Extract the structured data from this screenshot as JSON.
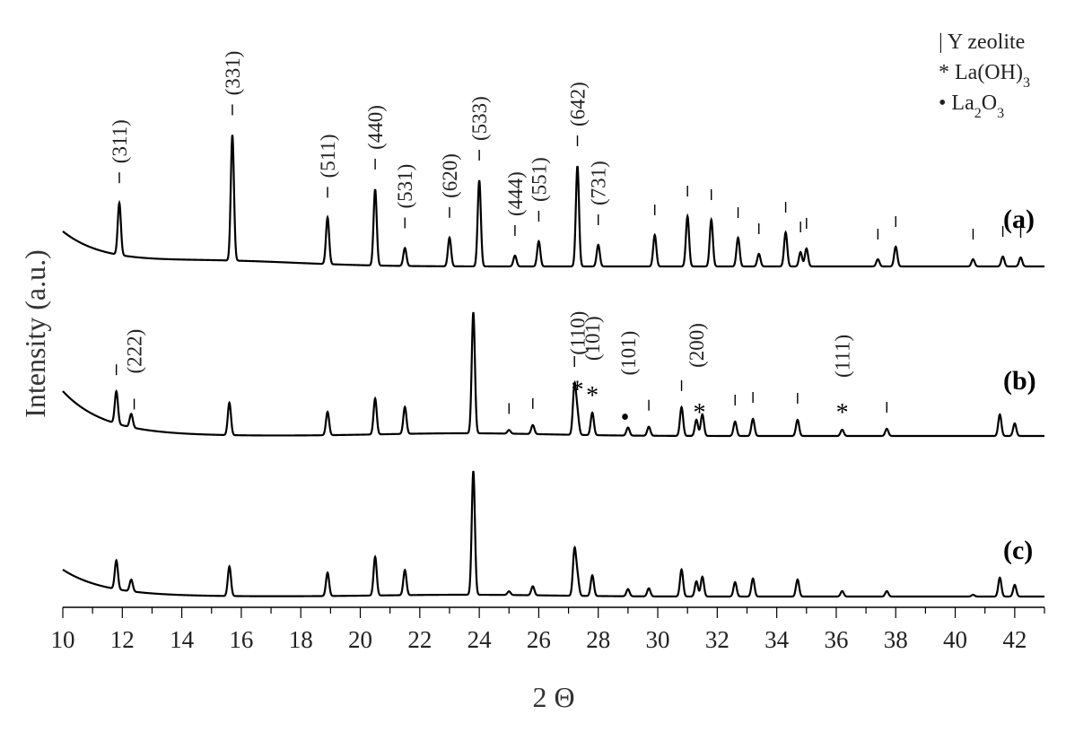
{
  "chart_data": {
    "type": "line",
    "xlabel": "2 Θ",
    "ylabel": "Intensity (a.u.)",
    "xlim": [
      10,
      43
    ],
    "x_ticks": [
      "10",
      "12",
      "14",
      "16",
      "18",
      "20",
      "22",
      "24",
      "26",
      "28",
      "30",
      "32",
      "34",
      "36",
      "38",
      "40",
      "42"
    ],
    "y_axis_values_shown": false,
    "legend": {
      "placement": "top-right",
      "entries": [
        {
          "symbol": "|",
          "text": "Y zeolite"
        },
        {
          "symbol": "*",
          "text": "La(OH)",
          "sub": "3"
        },
        {
          "symbol": "•",
          "text": "La",
          "sub": "2",
          "text2": "O",
          "sub2": "3"
        }
      ]
    },
    "series": [
      {
        "name": "(a)",
        "peaks": [
          {
            "x": 11.9,
            "h": 58
          },
          {
            "x": 15.7,
            "h": 140
          },
          {
            "x": 18.9,
            "h": 52
          },
          {
            "x": 20.5,
            "h": 85
          },
          {
            "x": 21.5,
            "h": 20
          },
          {
            "x": 23.0,
            "h": 32
          },
          {
            "x": 24.0,
            "h": 96
          },
          {
            "x": 25.2,
            "h": 12
          },
          {
            "x": 26.0,
            "h": 28
          },
          {
            "x": 27.3,
            "h": 112
          },
          {
            "x": 28.0,
            "h": 24
          },
          {
            "x": 29.9,
            "h": 35
          },
          {
            "x": 31.0,
            "h": 56
          },
          {
            "x": 31.8,
            "h": 52
          },
          {
            "x": 32.7,
            "h": 32
          },
          {
            "x": 33.4,
            "h": 14
          },
          {
            "x": 34.3,
            "h": 38
          },
          {
            "x": 34.8,
            "h": 16
          },
          {
            "x": 35.0,
            "h": 20
          },
          {
            "x": 37.4,
            "h": 8
          },
          {
            "x": 38.0,
            "h": 22
          },
          {
            "x": 40.6,
            "h": 8
          },
          {
            "x": 41.6,
            "h": 11
          },
          {
            "x": 42.2,
            "h": 10
          }
        ],
        "ticks": [
          11.9,
          15.7,
          18.9,
          20.5,
          21.5,
          23.0,
          24.0,
          25.2,
          26.0,
          27.3,
          28.0,
          29.9,
          31.0,
          31.8,
          32.7,
          33.4,
          34.3,
          34.8,
          35.0,
          37.4,
          38.0,
          40.6,
          41.6,
          42.2
        ],
        "annotations": [
          {
            "x": 11.9,
            "text": "(311)"
          },
          {
            "x": 15.7,
            "text": "(331)"
          },
          {
            "x": 18.9,
            "text": "(511)"
          },
          {
            "x": 20.5,
            "text": "(440)"
          },
          {
            "x": 21.5,
            "text": "(531)"
          },
          {
            "x": 23.0,
            "text": "(620)"
          },
          {
            "x": 24.0,
            "text": "(533)"
          },
          {
            "x": 25.2,
            "text": "(444)"
          },
          {
            "x": 26.0,
            "text": "(551)"
          },
          {
            "x": 27.3,
            "text": "(642)"
          },
          {
            "x": 28.0,
            "text": "(731)"
          }
        ]
      },
      {
        "name": "(b)",
        "peaks": [
          {
            "x": 11.8,
            "h": 36
          },
          {
            "x": 12.3,
            "h": 15
          },
          {
            "x": 15.6,
            "h": 36
          },
          {
            "x": 18.9,
            "h": 26
          },
          {
            "x": 20.5,
            "h": 40
          },
          {
            "x": 21.5,
            "h": 30
          },
          {
            "x": 23.8,
            "h": 135
          },
          {
            "x": 25.0,
            "h": 4
          },
          {
            "x": 25.8,
            "h": 10
          },
          {
            "x": 27.2,
            "h": 54
          },
          {
            "x": 27.3,
            "h": 22
          },
          {
            "x": 27.8,
            "h": 25
          },
          {
            "x": 29.0,
            "h": 9
          },
          {
            "x": 29.7,
            "h": 10
          },
          {
            "x": 30.8,
            "h": 32
          },
          {
            "x": 31.3,
            "h": 18
          },
          {
            "x": 31.5,
            "h": 24
          },
          {
            "x": 32.6,
            "h": 16
          },
          {
            "x": 33.2,
            "h": 19
          },
          {
            "x": 34.7,
            "h": 18
          },
          {
            "x": 36.2,
            "h": 7
          },
          {
            "x": 37.7,
            "h": 8
          },
          {
            "x": 41.5,
            "h": 24
          },
          {
            "x": 42.0,
            "h": 14
          }
        ],
        "ticks": [
          11.8,
          12.4,
          25.0,
          25.8,
          27.2,
          29.7,
          30.8,
          32.6,
          33.2,
          34.7,
          37.7
        ],
        "markers": [
          {
            "x": 27.3,
            "symbol": "*"
          },
          {
            "x": 27.8,
            "symbol": "*"
          },
          {
            "x": 28.9,
            "symbol": "•"
          },
          {
            "x": 31.4,
            "symbol": "*"
          },
          {
            "x": 36.2,
            "symbol": "*"
          }
        ],
        "annotations": [
          {
            "x": 12.4,
            "text": "(222)"
          },
          {
            "x": 27.3,
            "text": "(110)"
          },
          {
            "x": 27.8,
            "text": "(101)"
          },
          {
            "x": 29.0,
            "text": "(101)"
          },
          {
            "x": 31.3,
            "text": "(200)"
          },
          {
            "x": 36.2,
            "text": "(111)"
          }
        ]
      },
      {
        "name": "(c)",
        "peaks": [
          {
            "x": 11.8,
            "h": 32
          },
          {
            "x": 12.3,
            "h": 13
          },
          {
            "x": 15.6,
            "h": 33
          },
          {
            "x": 18.9,
            "h": 26
          },
          {
            "x": 20.5,
            "h": 43
          },
          {
            "x": 21.5,
            "h": 28
          },
          {
            "x": 23.8,
            "h": 138
          },
          {
            "x": 25.0,
            "h": 4
          },
          {
            "x": 25.8,
            "h": 10
          },
          {
            "x": 27.2,
            "h": 50
          },
          {
            "x": 27.3,
            "h": 20
          },
          {
            "x": 27.8,
            "h": 23
          },
          {
            "x": 29.0,
            "h": 8
          },
          {
            "x": 29.7,
            "h": 9
          },
          {
            "x": 30.8,
            "h": 30
          },
          {
            "x": 31.3,
            "h": 17
          },
          {
            "x": 31.5,
            "h": 22
          },
          {
            "x": 32.6,
            "h": 16
          },
          {
            "x": 33.2,
            "h": 20
          },
          {
            "x": 34.7,
            "h": 19
          },
          {
            "x": 36.2,
            "h": 6
          },
          {
            "x": 37.7,
            "h": 6
          },
          {
            "x": 40.6,
            "h": 2
          },
          {
            "x": 41.5,
            "h": 21
          },
          {
            "x": 42.0,
            "h": 13
          }
        ]
      }
    ]
  }
}
